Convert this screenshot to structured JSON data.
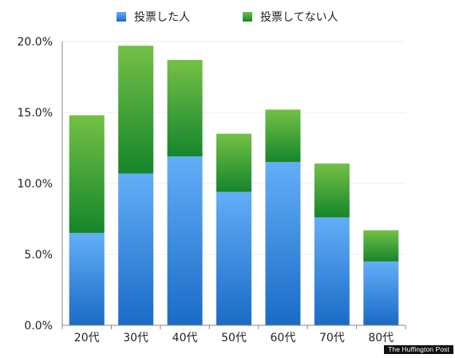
{
  "chart_data": {
    "type": "bar",
    "stacked": true,
    "categories": [
      "20代",
      "30代",
      "40代",
      "50代",
      "60代",
      "70代",
      "80代"
    ],
    "series": [
      {
        "name": "投票した人",
        "values": [
          6.5,
          10.7,
          11.9,
          9.4,
          11.5,
          7.6,
          4.5
        ],
        "color_top": "#63aef8",
        "color_bottom": "#1a6bc7"
      },
      {
        "name": "投票してない人",
        "values": [
          8.3,
          9.0,
          6.8,
          4.1,
          3.7,
          3.8,
          2.2
        ],
        "color_top": "#74c046",
        "color_bottom": "#15862b"
      }
    ],
    "ylim": [
      0,
      20
    ],
    "yticks": [
      0,
      5,
      10,
      15,
      20
    ],
    "ytick_labels": [
      "0.0%",
      "5.0%",
      "10.0%",
      "15.0%",
      "20.0%"
    ],
    "grid": true,
    "legend_position": "top-center",
    "title": "",
    "xlabel": "",
    "ylabel": ""
  },
  "watermark": "The Huffington Post"
}
